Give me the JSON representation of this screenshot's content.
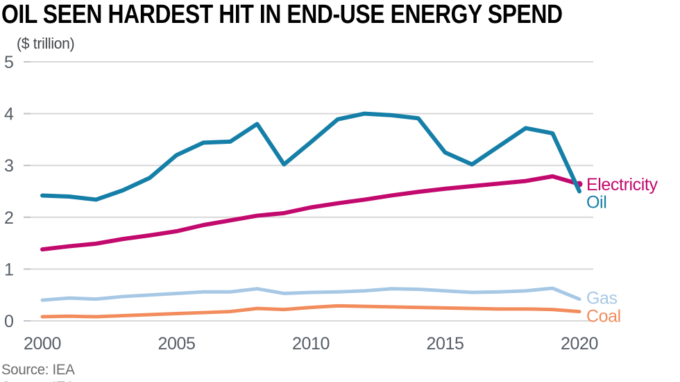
{
  "title": "OIL SEEN HARDEST HIT IN END-USE ENERGY SPEND",
  "subtitle": "($ trillion)",
  "source": "Source: IEA",
  "colors": {
    "oil": "#157fa8",
    "electricity": "#c2096d",
    "gas": "#a7c8e5",
    "coal": "#f28c5d",
    "gridline": "#d8d8d8",
    "tick": "#bfc4c9",
    "axis_text": "#565d66",
    "title_text": "#000000",
    "source_text": "#6b6b6b"
  },
  "chart_data": {
    "type": "line",
    "title": "OIL SEEN HARDEST HIT IN END-USE ENERGY SPEND",
    "ylabel": "($ trillion)",
    "xlabel": "",
    "x": [
      2000,
      2001,
      2002,
      2003,
      2004,
      2005,
      2006,
      2007,
      2008,
      2009,
      2010,
      2011,
      2012,
      2013,
      2014,
      2015,
      2016,
      2017,
      2018,
      2019,
      2020
    ],
    "x_ticks": [
      2000,
      2005,
      2010,
      2015,
      2020
    ],
    "y_ticks": [
      0,
      1,
      2,
      3,
      4,
      5
    ],
    "ylim": [
      0,
      5
    ],
    "grid": "horizontal-only",
    "legend_position": "right-end-labels",
    "series": [
      {
        "name": "Electricity",
        "color": "#c2096d",
        "end_marker": true,
        "values": [
          1.38,
          1.44,
          1.49,
          1.58,
          1.65,
          1.73,
          1.85,
          1.94,
          2.03,
          2.08,
          2.19,
          2.27,
          2.34,
          2.42,
          2.49,
          2.55,
          2.6,
          2.65,
          2.7,
          2.79,
          2.64
        ]
      },
      {
        "name": "Oil",
        "color": "#157fa8",
        "end_marker": false,
        "values": [
          2.42,
          2.4,
          2.34,
          2.52,
          2.76,
          3.2,
          3.44,
          3.46,
          3.8,
          3.02,
          3.45,
          3.89,
          4.0,
          3.97,
          3.91,
          3.25,
          3.02,
          3.37,
          3.72,
          3.62,
          2.5
        ]
      },
      {
        "name": "Gas",
        "color": "#a7c8e5",
        "end_marker": false,
        "values": [
          0.4,
          0.44,
          0.42,
          0.47,
          0.5,
          0.53,
          0.56,
          0.56,
          0.62,
          0.53,
          0.55,
          0.56,
          0.58,
          0.62,
          0.61,
          0.58,
          0.55,
          0.56,
          0.58,
          0.63,
          0.42
        ]
      },
      {
        "name": "Coal",
        "color": "#f28c5d",
        "end_marker": false,
        "values": [
          0.08,
          0.09,
          0.08,
          0.1,
          0.12,
          0.14,
          0.16,
          0.18,
          0.24,
          0.22,
          0.26,
          0.29,
          0.28,
          0.27,
          0.26,
          0.25,
          0.24,
          0.23,
          0.23,
          0.22,
          0.18
        ]
      }
    ]
  }
}
